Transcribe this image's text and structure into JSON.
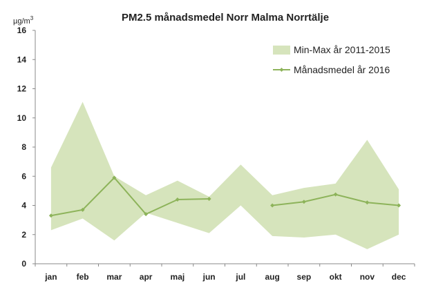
{
  "chart_data": {
    "type": "area",
    "title": "PM2.5 månadsmedel Norr Malma Norrtälje",
    "y_unit_main": "µg/m",
    "y_unit_sup": "3",
    "xlabel": "",
    "ylabel": "µg/m3",
    "ylim": [
      0,
      16
    ],
    "yticks": [
      "0",
      "2",
      "4",
      "6",
      "8",
      "10",
      "12",
      "14",
      "16"
    ],
    "grid": false,
    "legend_position": "top-right",
    "categories": [
      "jan",
      "feb",
      "mar",
      "apr",
      "maj",
      "jun",
      "jul",
      "aug",
      "sep",
      "okt",
      "nov",
      "dec"
    ],
    "series": [
      {
        "name": "Min-Max år 2011-2015",
        "kind": "range",
        "color": "#d6e4bc",
        "min": [
          2.3,
          3.1,
          1.6,
          3.5,
          2.8,
          2.1,
          4.0,
          1.9,
          1.8,
          2.0,
          1.0,
          2.0
        ],
        "max": [
          6.6,
          11.1,
          6.0,
          4.7,
          5.7,
          4.6,
          6.8,
          4.7,
          5.2,
          5.5,
          8.5,
          5.1
        ]
      },
      {
        "name": "Månadsmedel år 2016",
        "kind": "line",
        "color": "#8db35a",
        "values": [
          3.3,
          3.7,
          5.9,
          3.4,
          4.4,
          4.45,
          null,
          4.0,
          4.25,
          4.75,
          4.2,
          4.0
        ]
      }
    ]
  }
}
